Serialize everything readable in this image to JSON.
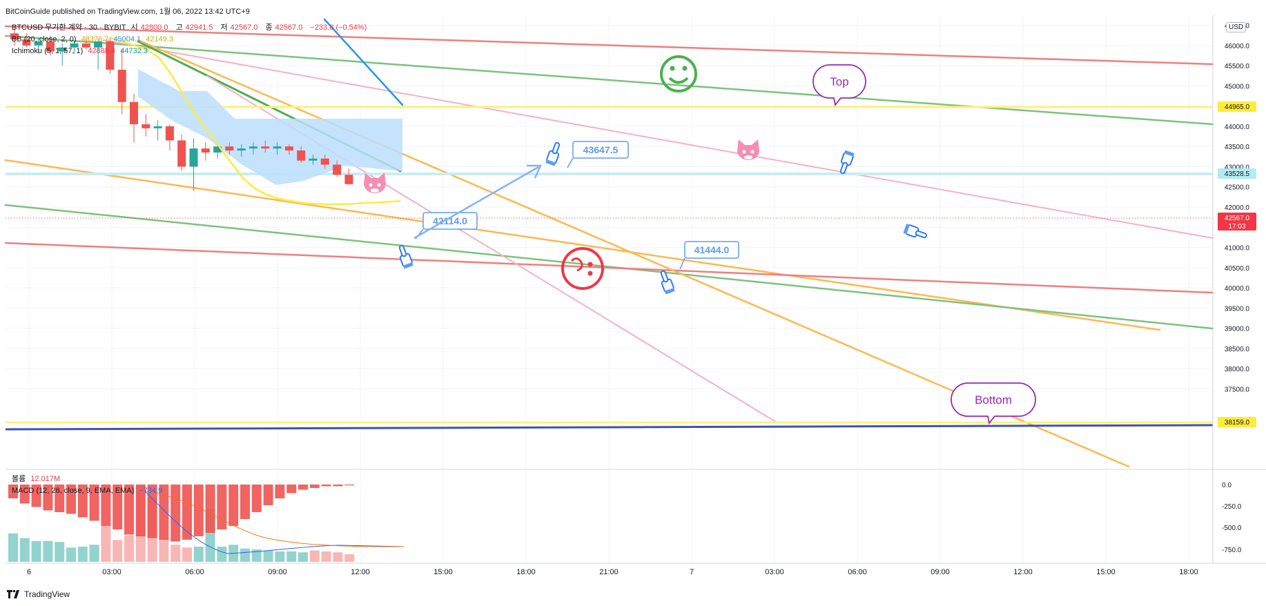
{
  "header": {
    "published": "BitCoinGuide published on TradingView.com, 1월 06, 2022 13:42 UTC+9",
    "symbol": "BTCUSD 무기한 계약 · 30 · BYBIT",
    "ohlc": {
      "o_label": "시",
      "o": "42800.0",
      "h_label": "고",
      "h": "42941.5",
      "l_label": "저",
      "l": "42567.0",
      "c_label": "종",
      "c": "42567.0",
      "change": "−233.0 (−0.54%)"
    },
    "bb": {
      "label": "BB (20, close, 2, 0)",
      "v1": "43376.7",
      "v2": "45004.1",
      "v3": "42149.3"
    },
    "ichimoku": {
      "label": "Ichimoku (5, 1, 57, 1)",
      "v1": "42888.4",
      "v2": "44732.3"
    },
    "volume": {
      "label": "볼륨",
      "value": "12.017M"
    },
    "macd": {
      "label": "MACD (12, 26, close, 9, EMA, EMA)",
      "value": "−734.9"
    }
  },
  "currency": "USD",
  "brand": "TradingView",
  "chart_data": {
    "type": "line",
    "timeframe": "30",
    "x_ticks": [
      "6",
      "03:00",
      "06:00",
      "09:00",
      "12:00",
      "15:00",
      "18:00",
      "21:00",
      "7",
      "03:00",
      "06:00",
      "09:00",
      "12:00",
      "15:00",
      "18:00"
    ],
    "y_ticks": [
      46500,
      46000,
      45500,
      45000,
      44500,
      44000,
      43500,
      43000,
      42500,
      42000,
      41500,
      41000,
      40500,
      40000,
      39500,
      39000,
      38500,
      38000,
      37500
    ],
    "y_range": [
      37250,
      46750
    ],
    "macd_ticks": [
      0.0,
      -250.0,
      -500.0,
      -750.0
    ],
    "price_labels": [
      {
        "value": "44965.0",
        "color": "#ffeb3b",
        "text_color": "#131722"
      },
      {
        "value": "43528.5",
        "color": "#b2ebf2",
        "text_color": "#131722"
      },
      {
        "value": "42567.0",
        "color": "#f23645",
        "text_color": "#ffffff",
        "sub": "17:03"
      },
      {
        "value": "38159.0",
        "color": "#ffeb3b",
        "text_color": "#131722"
      }
    ],
    "annotations": [
      {
        "text": "43647.5",
        "type": "callout"
      },
      {
        "text": "42114.0",
        "type": "callout"
      },
      {
        "text": "41444.0",
        "type": "callout"
      },
      {
        "text": "Top",
        "type": "bubble"
      },
      {
        "text": "Bottom",
        "type": "bubble"
      }
    ],
    "candles": [
      [
        46300,
        46450,
        46000,
        46150
      ],
      [
        46150,
        46300,
        45950,
        46000
      ],
      [
        46000,
        46200,
        45800,
        46100
      ],
      [
        46100,
        46250,
        45750,
        45850
      ],
      [
        45850,
        46050,
        45500,
        45950
      ],
      [
        45950,
        46100,
        45800,
        46050
      ],
      [
        46050,
        46200,
        45900,
        45950
      ],
      [
        45950,
        46150,
        45400,
        46100
      ],
      [
        46100,
        46200,
        45300,
        45400
      ],
      [
        45400,
        45900,
        44300,
        44600
      ],
      [
        44600,
        44800,
        43600,
        44050
      ],
      [
        44050,
        44300,
        43750,
        43950
      ],
      [
        43950,
        44150,
        43650,
        44000
      ],
      [
        44000,
        44050,
        43400,
        43650
      ],
      [
        43650,
        43800,
        42900,
        43000
      ],
      [
        43000,
        43700,
        42400,
        43450
      ],
      [
        43450,
        43600,
        43150,
        43350
      ],
      [
        43350,
        43550,
        43200,
        43500
      ],
      [
        43500,
        43600,
        43300,
        43400
      ],
      [
        43400,
        43550,
        43250,
        43450
      ],
      [
        43450,
        43600,
        43300,
        43500
      ],
      [
        43500,
        43650,
        43350,
        43450
      ],
      [
        43450,
        43600,
        43300,
        43500
      ],
      [
        43500,
        43550,
        43300,
        43400
      ],
      [
        43400,
        43500,
        43100,
        43150
      ],
      [
        43150,
        43300,
        43050,
        43200
      ],
      [
        43200,
        43300,
        42950,
        43050
      ],
      [
        43050,
        43150,
        42750,
        42800
      ],
      [
        42800,
        42950,
        42550,
        42567
      ]
    ],
    "series": [
      {
        "name": "BB basis",
        "color": "#ffeb3b",
        "values": [
          46200,
          46100,
          46000,
          45900,
          45700,
          45300,
          44800,
          44300,
          43900,
          43500,
          43100,
          42700,
          42450,
          42300,
          42200,
          42150,
          42100,
          42080,
          42070,
          42070,
          42080,
          42100,
          42110,
          42130,
          42150
        ]
      },
      {
        "name": "Ichimoku cloud",
        "color": "#2196f3",
        "values": []
      }
    ],
    "volume": [
      3,
      2.5,
      2.2,
      2.2,
      2.1,
      1.5,
      1.6,
      1.8,
      3.8,
      2.3,
      2.8,
      8,
      6.8,
      2.5,
      1.8,
      1.5,
      1.6,
      5.6,
      1.6,
      1.8,
      1.4,
      1.3,
      1.2,
      1.1,
      1.1,
      1.0,
      1.2,
      1.1,
      1.0,
      0.8
    ],
    "macd_hist": [
      -80,
      -110,
      -130,
      -150,
      -160,
      -170,
      -190,
      -210,
      -240,
      -260,
      -290,
      -300,
      -310,
      -320,
      -330,
      -320,
      -300,
      -280,
      -260,
      -240,
      -200,
      -160,
      -120,
      -80,
      -50,
      -30,
      -20,
      -10,
      -10,
      -5
    ]
  }
}
